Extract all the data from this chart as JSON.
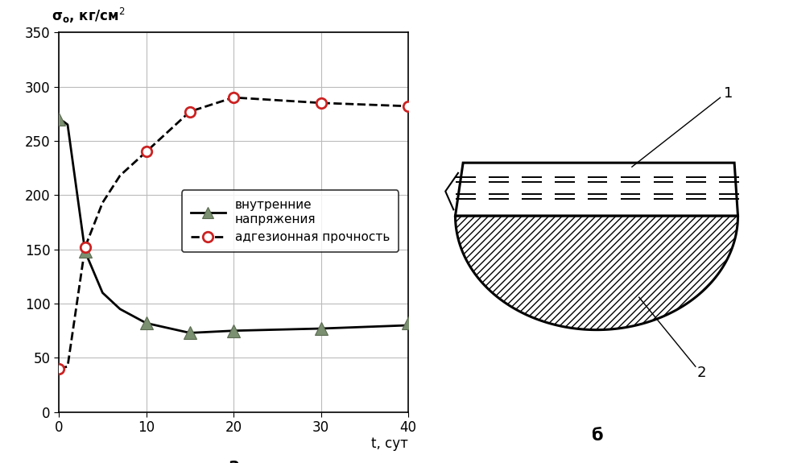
{
  "line1_x": [
    0,
    0.5,
    1,
    3,
    5,
    7,
    10,
    15,
    20,
    30,
    40
  ],
  "line1_y": [
    267,
    268,
    265,
    148,
    110,
    95,
    82,
    73,
    75,
    77,
    80
  ],
  "line2_x": [
    0,
    0.5,
    1,
    3,
    5,
    7,
    10,
    15,
    20,
    30,
    40
  ],
  "line2_y": [
    40,
    41,
    42,
    152,
    193,
    218,
    240,
    277,
    290,
    285,
    282
  ],
  "line1_marker_x": [
    0,
    3,
    10,
    15,
    20,
    30,
    40
  ],
  "line1_marker_y": [
    270,
    148,
    82,
    73,
    75,
    77,
    82
  ],
  "line2_marker_x": [
    0,
    3,
    10,
    15,
    20,
    30,
    40
  ],
  "line2_marker_y": [
    40,
    152,
    240,
    277,
    290,
    285,
    282
  ],
  "xlim": [
    0,
    40
  ],
  "ylim": [
    0,
    350
  ],
  "xticks": [
    0,
    10,
    20,
    30,
    40
  ],
  "yticks": [
    0,
    50,
    100,
    150,
    200,
    250,
    300,
    350
  ],
  "xlabel": "t, сут",
  "label_a": "а",
  "label_b": "б",
  "legend1": "внутренние\nнапряжения",
  "legend2": "адгезионная прочность",
  "triangle_face": "#7a9070",
  "triangle_edge": "#5a6a50",
  "circle_face": "#ffffff",
  "circle_edge": "#cc2222",
  "bg_color": "#ffffff",
  "grid_color": "#bbbbbb",
  "label1": "1",
  "label2": "2"
}
